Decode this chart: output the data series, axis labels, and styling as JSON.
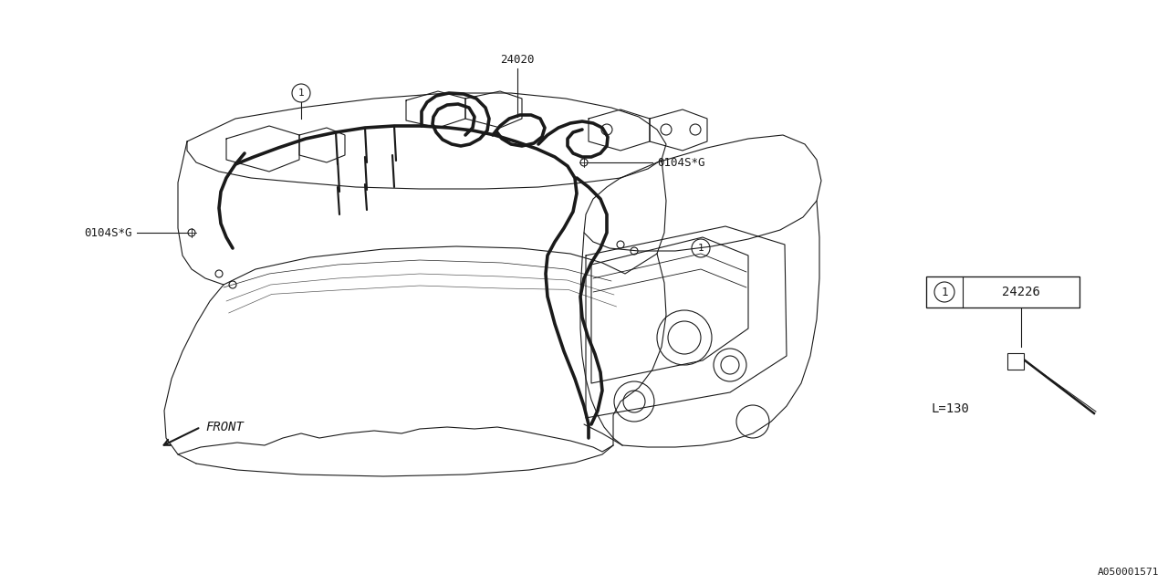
{
  "bg_color": "#ffffff",
  "line_color": "#1a1a1a",
  "part_number_main": "24020",
  "part_number_label": "24226",
  "bolt_label": "0104S*G",
  "front_label": "FRONT",
  "length_label": "L=130",
  "diagram_id": "A050001571",
  "font_size_label": 9,
  "font_size_small": 8,
  "font_size_id": 8,
  "lw_body": 0.8,
  "lw_thick": 2.6,
  "lw_thin": 0.6
}
